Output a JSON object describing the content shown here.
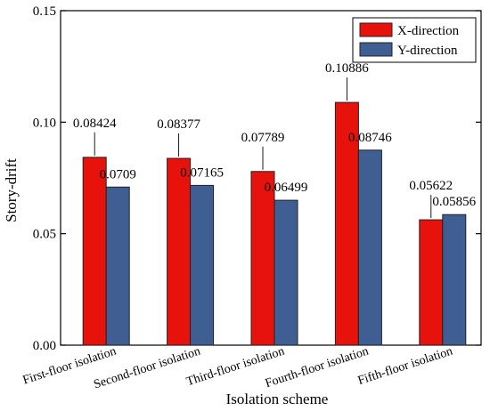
{
  "chart_data": {
    "type": "bar",
    "title": "",
    "xlabel": "Isolation scheme",
    "ylabel": "Story-drift",
    "ylim": [
      0,
      0.15
    ],
    "yticks": [
      "0.00",
      "0.05",
      "0.10",
      "0.15"
    ],
    "categories": [
      "First-floor isolation",
      "Second-floor isolation",
      "Third-floor isolation",
      "Fourth-floor isolation",
      "Fifth-floor isolation"
    ],
    "series": [
      {
        "name": "X-direction",
        "color": "#e8120c",
        "values": [
          0.08424,
          0.08377,
          0.07789,
          0.10886,
          0.05622
        ],
        "labels": [
          "0.08424",
          "0.08377",
          "0.07789",
          "0.10886",
          "0.05622"
        ]
      },
      {
        "name": "Y-direction",
        "color": "#3f5f93",
        "values": [
          0.0709,
          0.07165,
          0.06499,
          0.08746,
          0.05856
        ],
        "labels": [
          "0.0709",
          "0.07165",
          "0.06499",
          "0.08746",
          "0.05856"
        ]
      }
    ],
    "legend_position": "top-right",
    "grid": false
  }
}
